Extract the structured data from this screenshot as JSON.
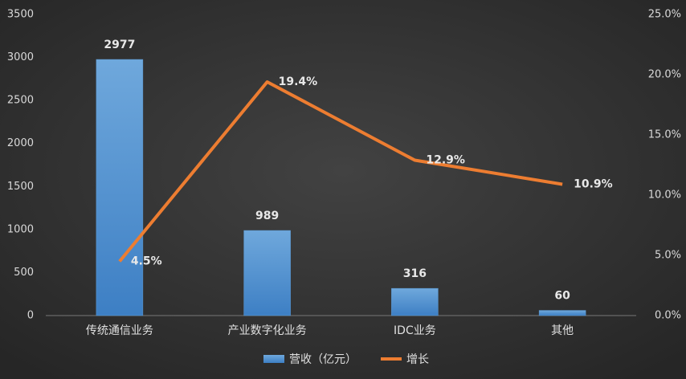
{
  "chart_data": {
    "type": "combo",
    "categories": [
      "传统通信业务",
      "产业数字化业务",
      "IDC业务",
      "其他"
    ],
    "series": [
      {
        "name": "营收（亿元）",
        "type": "bar",
        "color": "#5b9bd5",
        "values": [
          2977,
          989,
          316,
          60
        ]
      },
      {
        "name": "增长",
        "type": "line",
        "axis": "y2",
        "color": "#ed7d31",
        "values": [
          4.5,
          19.4,
          12.9,
          10.9
        ],
        "value_labels": [
          "4.5%",
          "19.4%",
          "12.9%",
          "10.9%"
        ]
      }
    ],
    "ylim": [
      0,
      3500
    ],
    "yticks": [
      0,
      500,
      1000,
      1500,
      2000,
      2500,
      3000,
      3500
    ],
    "y2lim": [
      0,
      25
    ],
    "y2ticks": [
      {
        "value": 0,
        "label": "0.0%"
      },
      {
        "value": 5,
        "label": "5.0%"
      },
      {
        "value": 10,
        "label": "10.0%"
      },
      {
        "value": 15,
        "label": "15.0%"
      },
      {
        "value": 20,
        "label": "20.0%"
      },
      {
        "value": 25,
        "label": "25.0%"
      }
    ],
    "grid": false
  }
}
